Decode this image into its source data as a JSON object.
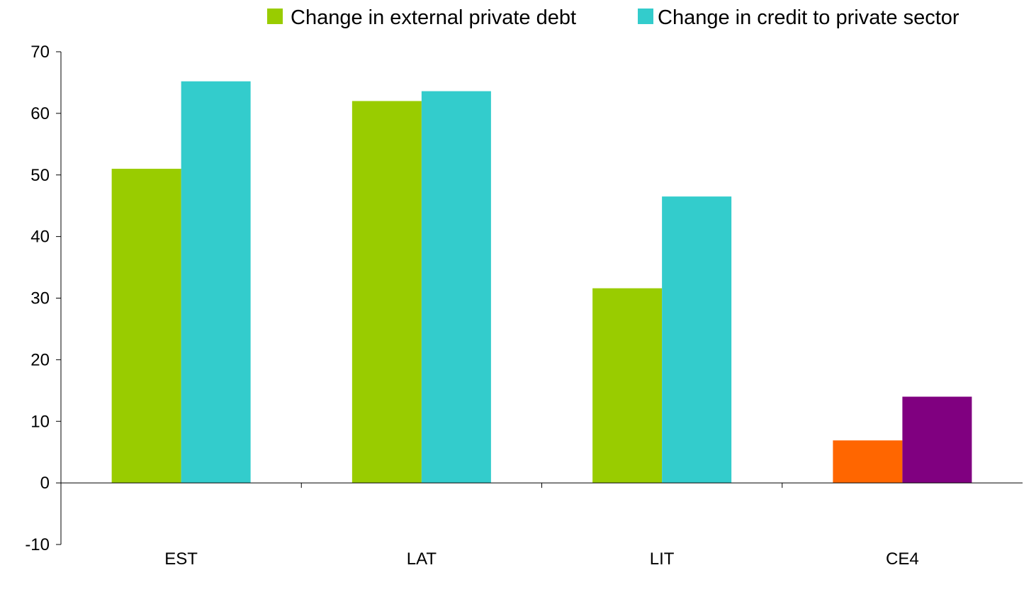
{
  "chart_data": {
    "type": "bar",
    "categories": [
      "EST",
      "LAT",
      "LIT",
      "CE4"
    ],
    "series": [
      {
        "name": "Change in external private debt",
        "values": [
          51,
          62,
          31.6,
          6.9
        ],
        "color": "#99CC00",
        "point_colors": [
          "#99CC00",
          "#99CC00",
          "#99CC00",
          "#FF6600"
        ]
      },
      {
        "name": "Change in credit to private sector",
        "values": [
          65.2,
          63.6,
          46.5,
          14
        ],
        "color": "#33CCCC",
        "point_colors": [
          "#33CCCC",
          "#33CCCC",
          "#33CCCC",
          "#800080"
        ]
      }
    ],
    "ylim": [
      -10,
      70
    ],
    "yticks": [
      "70",
      "60",
      "50",
      "40",
      "30",
      "20",
      "10",
      "0",
      "-10"
    ],
    "ytick_values": [
      70,
      60,
      50,
      40,
      30,
      20,
      10,
      0,
      -10
    ],
    "grid": false,
    "legend_position": "top-right",
    "title": "",
    "xlabel": "",
    "ylabel": ""
  }
}
